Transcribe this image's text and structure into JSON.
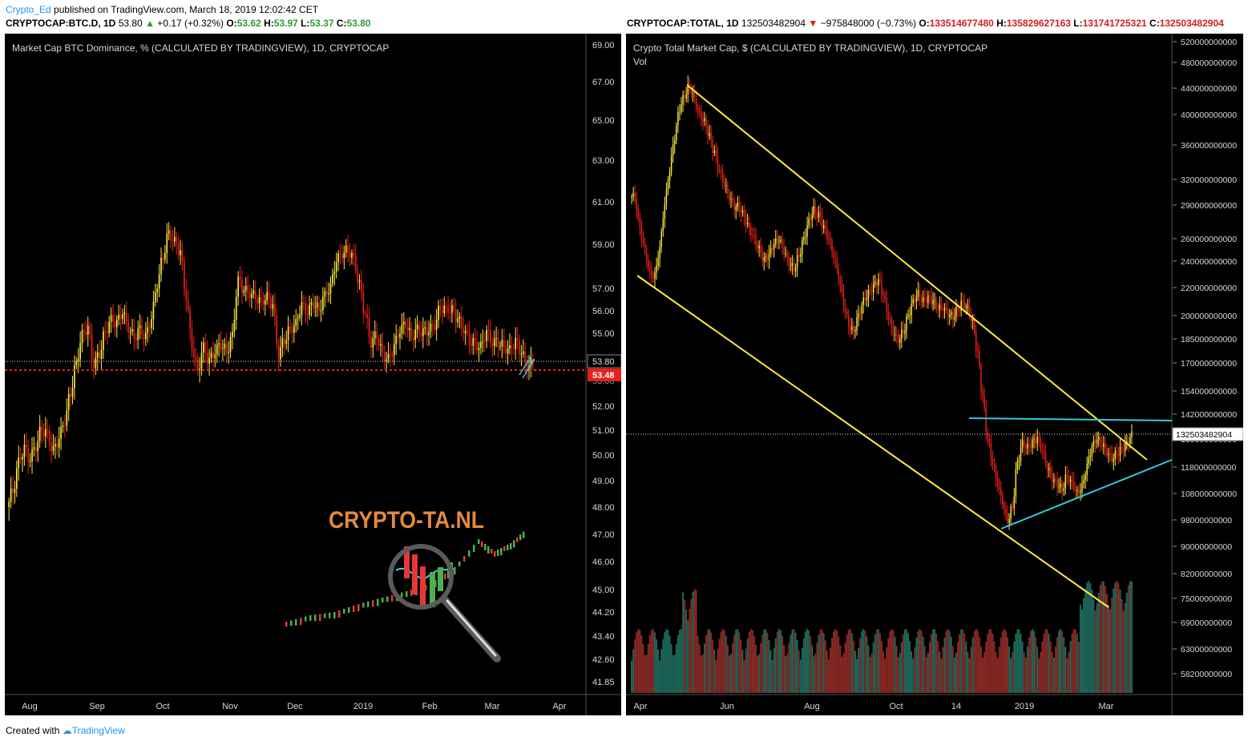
{
  "header": {
    "author": "Crypto_Ed",
    "published_text": "published on TradingView.com, March 18, 2019 12:02:42 CET"
  },
  "left_ohlc": {
    "symbol": "CRYPTOCAP:BTC.D, 1D",
    "last": "53.80",
    "change": "+0.17 (+0.32%)",
    "o_label": "O:",
    "o": "53.62",
    "h_label": "H:",
    "h": "53.97",
    "l_label": "L:",
    "l": "53.37",
    "c_label": "C:",
    "c": "53.80"
  },
  "right_ohlc": {
    "symbol": "CRYPTOCAP:TOTAL, 1D",
    "last": "132503482904",
    "change": "−975848000 (−0.73%)",
    "o_label": "O:",
    "o": "133514677480",
    "h_label": "H:",
    "h": "135829627163",
    "l_label": "L:",
    "l": "131741725321",
    "c_label": "C:",
    "c": "132503482904"
  },
  "footer": {
    "created_with": "Created with",
    "tradingview": "TradingView"
  },
  "colors": {
    "background": "#000000",
    "candle_up": "#ffeb3b",
    "candle_down": "#e8201c",
    "trend_yellow": "#ffeb3b",
    "trend_cyan": "#36c6e0",
    "support_red": "#e8201c",
    "vol_up": "#1f6b5e",
    "vol_down": "#8e2b26"
  },
  "chart_data": [
    {
      "type": "candlestick",
      "title": "Market Cap BTC Dominance, % (CALCULATED BY TRADINGVIEW), 1D, CRYPTOCAP",
      "watermark": "CRYPTO-TA.NL",
      "y_ticks": [
        "69.00",
        "67.00",
        "65.00",
        "63.00",
        "61.00",
        "59.00",
        "57.00",
        "56.00",
        "55.00",
        "52.00",
        "51.00",
        "50.00",
        "49.00",
        "48.00",
        "47.00",
        "46.00",
        "45.00",
        "44.20",
        "43.40",
        "42.60",
        "41.85"
      ],
      "x_ticks": [
        "Aug",
        "Sep",
        "Oct",
        "Nov",
        "Dec",
        "2019",
        "Feb",
        "Mar",
        "Apr"
      ],
      "last_price_label": "53.80",
      "support_label": "53.48",
      "hidden_tick_label": "53.00",
      "support_level": 53.48,
      "series": {
        "close": [
          48.6,
          49.7,
          50.2,
          49.8,
          50.4,
          51.1,
          50.9,
          50.1,
          50.6,
          51.4,
          52.6,
          53.8,
          54.9,
          55.2,
          53.7,
          54.2,
          55.1,
          55.6,
          55.4,
          55.9,
          55.3,
          54.9,
          55.2,
          54.8,
          55.6,
          57.2,
          58.5,
          59.6,
          59.1,
          58.6,
          56.6,
          54.6,
          53.5,
          54.4,
          53.8,
          54.2,
          54.6,
          54.3,
          54.9,
          57.3,
          56.9,
          56.8,
          56.7,
          56.4,
          56.6,
          56.2,
          54.1,
          54.8,
          55.2,
          55.4,
          56.2,
          55.9,
          56.4,
          56.1,
          56.7,
          57.0,
          58.2,
          58.6,
          58.8,
          58.4,
          57.1,
          55.8,
          54.6,
          55.0,
          54.2,
          53.9,
          54.4,
          55.1,
          55.5,
          54.9,
          55.2,
          55.0,
          55.1,
          55.4,
          56.2,
          56.1,
          56.0,
          55.6,
          55.2,
          54.8,
          54.6,
          54.4,
          55.0,
          54.6,
          54.7,
          54.5,
          54.3,
          54.6,
          54.2,
          53.7,
          53.8
        ]
      }
    },
    {
      "type": "candlestick",
      "title": "Crypto Total Market Cap, $ (CALCULATED BY TRADINGVIEW), 1D, CRYPTOCAP",
      "subtitle": "Vol",
      "y_ticks": [
        "520000000000",
        "480000000000",
        "440000000000",
        "400000000000",
        "360000000000",
        "320000000000",
        "290000000000",
        "260000000000",
        "240000000000",
        "220000000000",
        "200000000000",
        "185000000000",
        "170000000000",
        "154000000000",
        "142000000000",
        "130000000000",
        "118000000000",
        "108000000000",
        "98000000000",
        "90000000000",
        "82000000000",
        "75000000000",
        "69000000000",
        "63000000000",
        "58200000000"
      ],
      "x_ticks": [
        "Apr",
        "Jun",
        "Aug",
        "Oct",
        "14",
        "2019",
        "Mar"
      ],
      "last_price_label": "132503482904",
      "series": {
        "close_billions": [
          300,
          270,
          250,
          230,
          228,
          250,
          290,
          330,
          370,
          410,
          430,
          445,
          425,
          400,
          390,
          370,
          350,
          330,
          315,
          300,
          290,
          290,
          280,
          270,
          260,
          250,
          240,
          245,
          255,
          260,
          250,
          240,
          235,
          245,
          260,
          275,
          285,
          280,
          270,
          260,
          245,
          230,
          210,
          195,
          190,
          200,
          210,
          215,
          220,
          225,
          215,
          200,
          190,
          185,
          190,
          200,
          210,
          215,
          210,
          212,
          210,
          205,
          206,
          202,
          200,
          205,
          210,
          205,
          195,
          175,
          150,
          130,
          120,
          112,
          105,
          98,
          103,
          120,
          128,
          126,
          128,
          130,
          125,
          118,
          114,
          112,
          110,
          115,
          112,
          108,
          110,
          118,
          126,
          130,
          128,
          125,
          122,
          124,
          126,
          128,
          132
        ]
      }
    }
  ]
}
